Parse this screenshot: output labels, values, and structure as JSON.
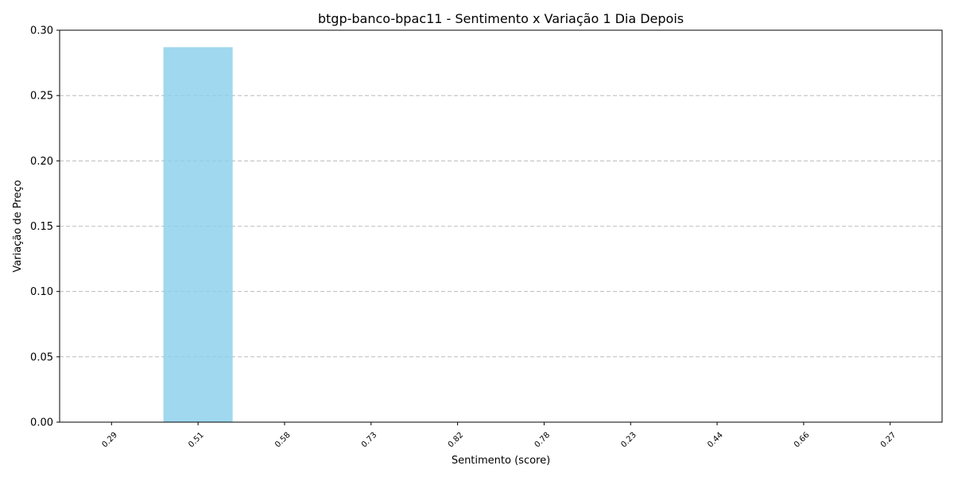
{
  "chart_data": {
    "type": "bar",
    "title": "btgp-banco-bpac11 - Sentimento x Variação 1 Dia Depois",
    "xlabel": "Sentimento (score)",
    "ylabel": "Variação de Preço",
    "categories": [
      "0.29",
      "0.51",
      "0.58",
      "0.73",
      "0.82",
      "0.78",
      "0.23",
      "0.44",
      "0.66",
      "0.27"
    ],
    "values": [
      0,
      0.287,
      0,
      0,
      0,
      0,
      0,
      0,
      0,
      0
    ],
    "ylim": [
      0,
      0.3
    ],
    "yticks": [
      "0.00",
      "0.05",
      "0.10",
      "0.15",
      "0.20",
      "0.25",
      "0.30"
    ],
    "bar_color": "#87ceeb",
    "grid": "y-dashed"
  }
}
